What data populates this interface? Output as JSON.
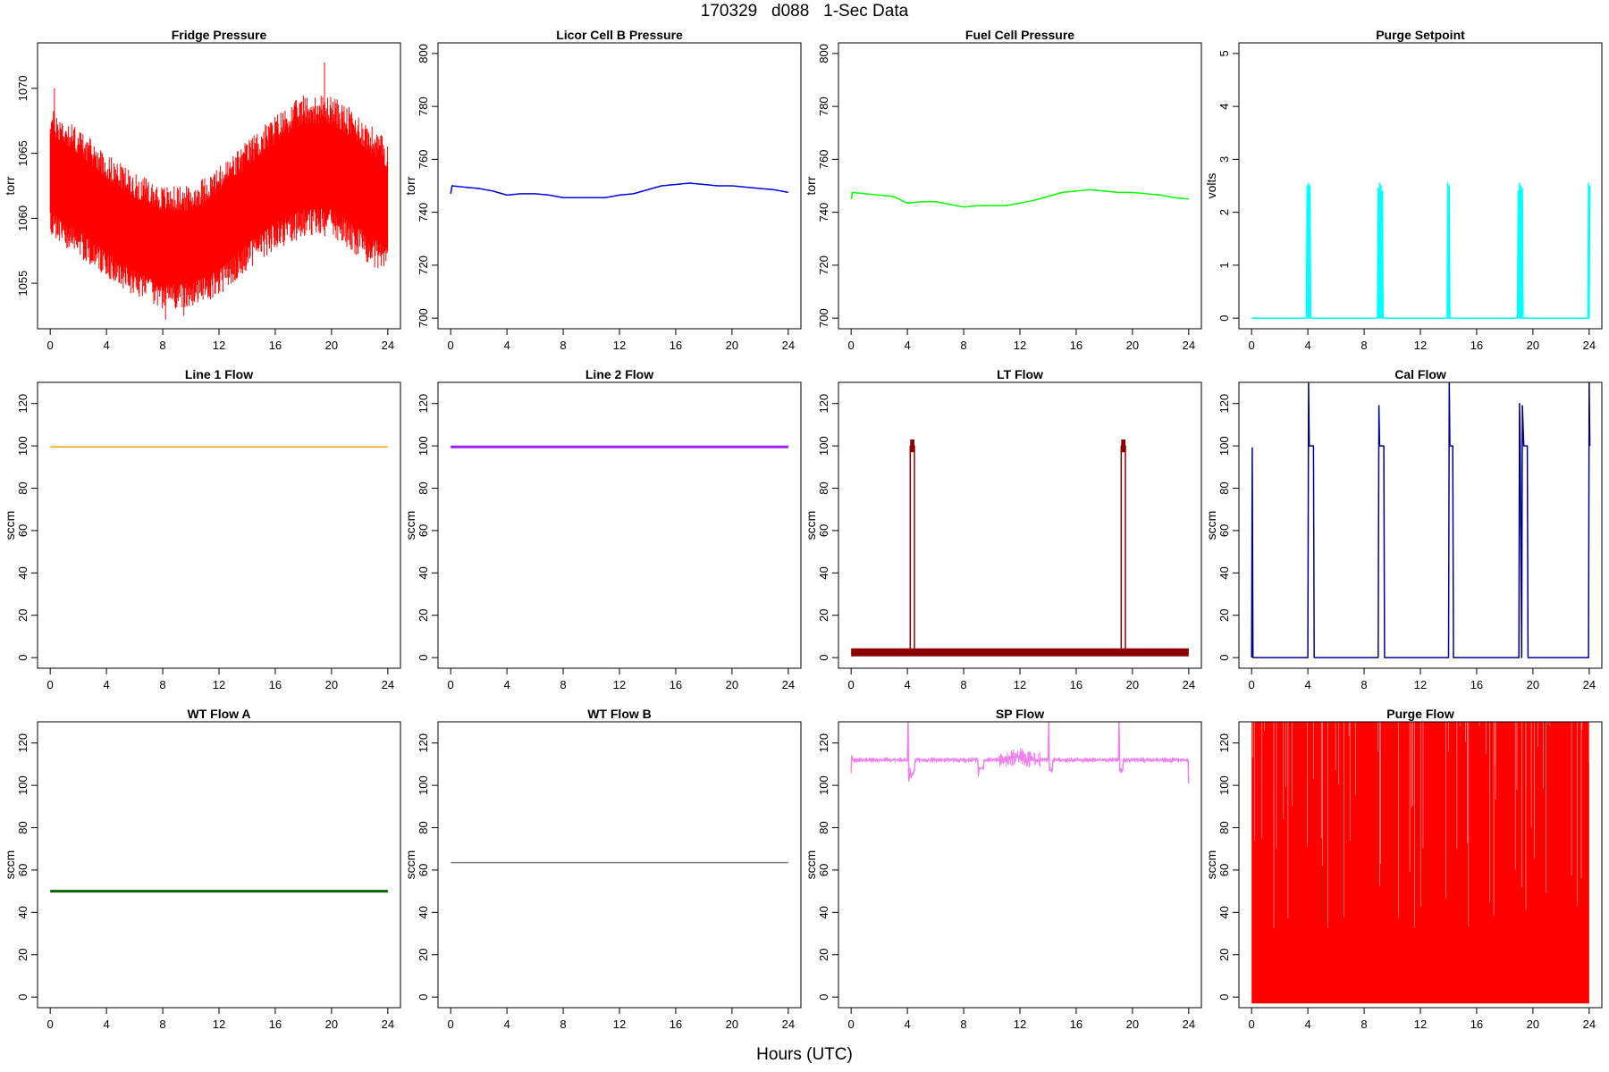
{
  "figure": {
    "title": "170329   d088   1-Sec Data",
    "xlabel": "Hours (UTC)"
  },
  "chart_data": [
    {
      "type": "line",
      "title": "Fridge Pressure",
      "ylabel": "torr",
      "color": "#ff0000",
      "style": "noise",
      "xlim": [
        -0.9,
        24.9
      ],
      "ylim": [
        1051.5,
        1073.5
      ],
      "yticks": [
        1055,
        1060,
        1065,
        1070
      ],
      "xticks": [
        0,
        4,
        8,
        12,
        16,
        20,
        24
      ],
      "series": [
        {
          "x": [
            0,
            2,
            4,
            6,
            8,
            10,
            12,
            14,
            16,
            18,
            20,
            22,
            24
          ],
          "upper": [
            1068.5,
            1067,
            1065,
            1063.5,
            1062.5,
            1062.5,
            1064,
            1066,
            1068,
            1069.5,
            1069.5,
            1068,
            1066
          ],
          "lower": [
            1058.5,
            1057,
            1055.5,
            1054,
            1053,
            1053,
            1054,
            1056,
            1057.5,
            1058.5,
            1058.5,
            1057,
            1055.5
          ],
          "peaks": [
            [
              0.3,
              1070
            ],
            [
              19.5,
              1072
            ],
            [
              8.2,
              1052.2
            ],
            [
              9.5,
              1052.5
            ]
          ]
        }
      ]
    },
    {
      "type": "line",
      "title": "Licor Cell B Pressure",
      "ylabel": "torr",
      "color": "#0000dd",
      "xlim": [
        -0.9,
        24.9
      ],
      "ylim": [
        696,
        804
      ],
      "yticks": [
        700,
        720,
        740,
        760,
        780,
        800
      ],
      "xticks": [
        0,
        4,
        8,
        12,
        16,
        20,
        24
      ],
      "series": [
        {
          "x": [
            0,
            0.1,
            1,
            2,
            3,
            4,
            5,
            6,
            7,
            8,
            9,
            10,
            11,
            12,
            13,
            14,
            15,
            16,
            17,
            18,
            19,
            20,
            21,
            22,
            23,
            24
          ],
          "values": [
            747,
            750,
            749.5,
            749,
            748,
            746.5,
            747,
            747,
            746.5,
            745.5,
            745.5,
            745.5,
            745.5,
            746.5,
            747,
            748.5,
            750,
            750.5,
            751,
            750.5,
            750,
            750,
            749.5,
            749,
            748.5,
            747.5
          ]
        }
      ]
    },
    {
      "type": "line",
      "title": "Fuel Cell Pressure",
      "ylabel": "torr",
      "color": "#00ff00",
      "xlim": [
        -0.9,
        24.9
      ],
      "ylim": [
        696,
        804
      ],
      "yticks": [
        700,
        720,
        740,
        760,
        780,
        800
      ],
      "xticks": [
        0,
        4,
        8,
        12,
        16,
        20,
        24
      ],
      "series": [
        {
          "x": [
            0,
            0.1,
            1,
            2,
            3,
            4,
            5,
            6,
            7,
            8,
            9,
            10,
            11,
            12,
            13,
            14,
            15,
            16,
            17,
            18,
            19,
            20,
            21,
            22,
            23,
            24
          ],
          "values": [
            745,
            747.5,
            747,
            746.5,
            746,
            743.5,
            744,
            744,
            743,
            742,
            742.5,
            742.5,
            742.5,
            743.5,
            744.5,
            746,
            747.5,
            748,
            748.5,
            748,
            747.5,
            747.5,
            747,
            746.5,
            745.5,
            745
          ]
        }
      ]
    },
    {
      "type": "line",
      "title": "Purge Setpoint",
      "ylabel": "volts",
      "color": "#00ffff",
      "xlim": [
        -0.9,
        24.9
      ],
      "ylim": [
        -0.2,
        5.2
      ],
      "yticks": [
        0,
        1,
        2,
        3,
        4,
        5
      ],
      "xticks": [
        0,
        4,
        8,
        12,
        16,
        20,
        24
      ],
      "series": [
        {
          "x": [
            0,
            3.9,
            3.95,
            4.0,
            4.05,
            4.1,
            4.15,
            4.2,
            4.25,
            8.95,
            9.0,
            9.05,
            9.1,
            9.15,
            9.2,
            9.25,
            9.3,
            9.35,
            13.9,
            13.95,
            14.0,
            14.05,
            14.1,
            18.9,
            18.95,
            19.0,
            19.05,
            19.1,
            19.15,
            19.2,
            19.25,
            19.3,
            23.9,
            23.95,
            24.0,
            24.05
          ],
          "values": [
            0,
            0,
            2.5,
            0,
            2.55,
            0,
            2.5,
            0,
            0,
            0,
            2.45,
            0,
            2.55,
            0,
            2.5,
            0,
            2.4,
            0,
            0,
            2.55,
            0,
            2.5,
            0,
            0,
            2.4,
            0,
            2.55,
            0,
            2.5,
            0,
            2.45,
            0,
            0,
            2.55,
            0,
            2.5
          ]
        }
      ]
    },
    {
      "type": "line",
      "title": "Line 1 Flow",
      "ylabel": "sccm",
      "color": "#ffa500",
      "xlim": [
        -0.9,
        24.9
      ],
      "ylim": [
        -5,
        130
      ],
      "yticks": [
        0,
        20,
        40,
        60,
        80,
        100,
        120
      ],
      "xticks": [
        0,
        4,
        8,
        12,
        16,
        20,
        24
      ],
      "series": [
        {
          "x": [
            0,
            24
          ],
          "values": [
            99.5,
            99.5
          ]
        }
      ]
    },
    {
      "type": "line",
      "title": "Line 2 Flow",
      "ylabel": "sccm",
      "color": "#a020f0",
      "thick": true,
      "xlim": [
        -0.9,
        24.9
      ],
      "ylim": [
        -5,
        130
      ],
      "yticks": [
        0,
        20,
        40,
        60,
        80,
        100,
        120
      ],
      "xticks": [
        0,
        4,
        8,
        12,
        16,
        20,
        24
      ],
      "series": [
        {
          "x": [
            0,
            24
          ],
          "values": [
            99.5,
            99.5
          ]
        }
      ]
    },
    {
      "type": "line",
      "title": "LT Flow",
      "ylabel": "sccm",
      "color": "#8b0000",
      "xlim": [
        -0.9,
        24.9
      ],
      "ylim": [
        -5,
        130
      ],
      "yticks": [
        0,
        20,
        40,
        60,
        80,
        100,
        120
      ],
      "xticks": [
        0,
        4,
        8,
        12,
        16,
        20,
        24
      ],
      "series": [
        {
          "x": [
            0,
            4.2,
            4.2,
            4.5,
            4.5,
            19.2,
            19.2,
            19.5,
            19.5,
            24
          ],
          "values": [
            2.5,
            2.5,
            100,
            100,
            2.5,
            2.5,
            100,
            100,
            2.5,
            2.5
          ]
        }
      ]
    },
    {
      "type": "line",
      "title": "Cal Flow",
      "ylabel": "sccm",
      "color": "#00008b",
      "xlim": [
        -0.9,
        24.9
      ],
      "ylim": [
        -5,
        130
      ],
      "yticks": [
        0,
        20,
        40,
        60,
        80,
        100,
        120
      ],
      "xticks": [
        0,
        4,
        8,
        12,
        16,
        20,
        24
      ],
      "series": [
        {
          "x": [
            0,
            0.05,
            0.1,
            4.0,
            4.05,
            4.1,
            4.4,
            4.45,
            9.0,
            9.05,
            9.1,
            9.4,
            9.45,
            14.0,
            14.05,
            14.1,
            14.3,
            14.35,
            19.0,
            19.05,
            19.1,
            19.2,
            19.25,
            19.35,
            19.4,
            19.6,
            19.65,
            23.95,
            24.0,
            24.05
          ],
          "values": [
            0,
            99,
            0,
            0,
            130,
            100,
            100,
            0,
            0,
            119,
            100,
            100,
            0,
            0,
            130,
            100,
            100,
            0,
            0,
            120,
            100,
            0,
            119,
            100,
            100,
            100,
            0,
            0,
            130,
            100
          ]
        }
      ]
    },
    {
      "type": "line",
      "title": "WT Flow A",
      "ylabel": "sccm",
      "color": "#006400",
      "thick": true,
      "xlim": [
        -0.9,
        24.9
      ],
      "ylim": [
        -5,
        130
      ],
      "yticks": [
        0,
        20,
        40,
        60,
        80,
        100,
        120
      ],
      "xticks": [
        0,
        4,
        8,
        12,
        16,
        20,
        24
      ],
      "series": [
        {
          "x": [
            0,
            24
          ],
          "values": [
            50,
            50
          ]
        }
      ]
    },
    {
      "type": "line",
      "title": "WT Flow B",
      "ylabel": "sccm",
      "color": "#808080",
      "xlim": [
        -0.9,
        24.9
      ],
      "ylim": [
        -5,
        130
      ],
      "yticks": [
        0,
        20,
        40,
        60,
        80,
        100,
        120
      ],
      "xticks": [
        0,
        4,
        8,
        12,
        16,
        20,
        24
      ],
      "series": [
        {
          "x": [
            0,
            24
          ],
          "values": [
            63.5,
            63.5
          ]
        }
      ]
    },
    {
      "type": "line",
      "title": "SP Flow",
      "ylabel": "sccm",
      "color": "#ee82ee",
      "xlim": [
        -0.9,
        24.9
      ],
      "ylim": [
        -5,
        130
      ],
      "yticks": [
        0,
        20,
        40,
        60,
        80,
        100,
        120
      ],
      "xticks": [
        0,
        4,
        8,
        12,
        16,
        20,
        24
      ],
      "series": [
        {
          "x": [
            0,
            0.05,
            0.1,
            2,
            4.0,
            4.05,
            4.1,
            4.2,
            4.25,
            4.5,
            4.55,
            9.0,
            9.05,
            9.1,
            9.4,
            9.45,
            11,
            12,
            12.5,
            14.0,
            14.05,
            14.1,
            14.3,
            14.35,
            19.0,
            19.05,
            19.1,
            19.3,
            19.35,
            23.95,
            24.0
          ],
          "values": [
            107,
            114,
            112,
            112,
            112,
            131,
            102,
            108,
            104,
            107,
            112,
            112,
            105,
            108,
            108,
            112,
            112,
            114,
            112,
            112,
            131,
            107,
            107,
            112,
            112,
            131,
            107,
            107,
            112,
            112,
            101
          ]
        }
      ]
    },
    {
      "type": "area",
      "title": "Purge Flow",
      "ylabel": "sccm",
      "color": "#ff0000",
      "xlim": [
        -0.9,
        24.9
      ],
      "ylim": [
        -5,
        130
      ],
      "yticks": [
        0,
        20,
        40,
        60,
        80,
        100,
        120
      ],
      "xticks": [
        0,
        4,
        8,
        12,
        16,
        20,
        24
      ],
      "series": [
        {
          "x": [
            0,
            24
          ],
          "lower": [
            -3,
            -3
          ],
          "upper": [
            130,
            130
          ]
        }
      ]
    }
  ]
}
